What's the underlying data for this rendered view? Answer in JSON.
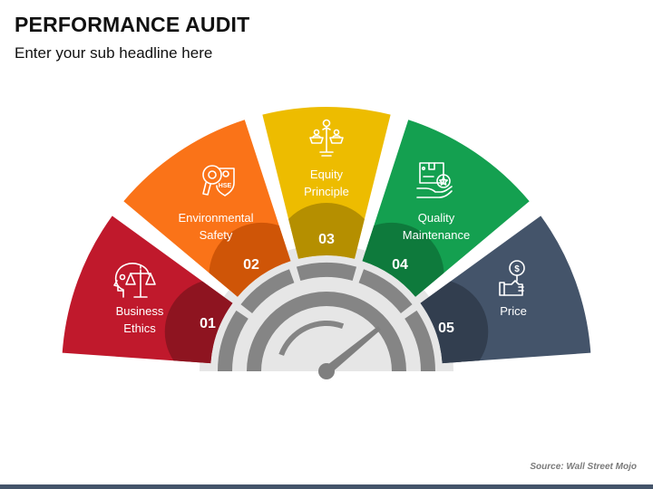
{
  "header": {
    "title": "PERFORMANCE AUDIT",
    "subtitle": "Enter your sub headline here"
  },
  "segments": [
    {
      "number": "01",
      "label_line1": "Business",
      "label_line2": "Ethics",
      "icon": "head-scales-icon",
      "color": "#C0192C",
      "dark_color": "#8E1420"
    },
    {
      "number": "02",
      "label_line1": "Environmental",
      "label_line2": "Safety",
      "icon": "hse-magnifier-shield-icon",
      "color": "#FA7318",
      "dark_color": "#CF5507"
    },
    {
      "number": "03",
      "label_line1": "Equity",
      "label_line2": "Principle",
      "icon": "balance-people-icon",
      "color": "#EDBC00",
      "dark_color": "#B58F00"
    },
    {
      "number": "04",
      "label_line1": "Quality",
      "label_line2": "Maintenance",
      "icon": "box-hand-star-icon",
      "color": "#14A050",
      "dark_color": "#0E7A3C"
    },
    {
      "number": "05",
      "label_line1": "Price",
      "label_line2": "",
      "icon": "hand-dollar-magnifier-icon",
      "color": "#44546A",
      "dark_color": "#323E4F"
    }
  ],
  "gauge": {
    "base_color": "#E6E6E6",
    "tick_color": "#858585",
    "needle_color": "#7F7F7F"
  },
  "footer": {
    "source": "Source: Wall Street Mojo",
    "bar_color": "#44546A"
  }
}
